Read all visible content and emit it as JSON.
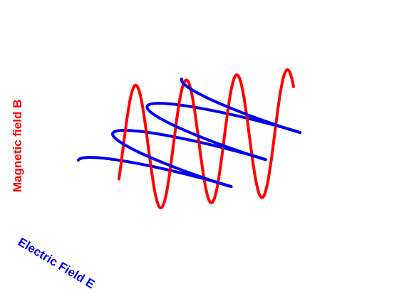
{
  "labels": {
    "magnetic": "Magnetic field B",
    "electric": "Electric Field E"
  },
  "colors": {
    "magnetic": "#ff0000",
    "electric": "#0000ee",
    "background": "#ffffff"
  }
}
